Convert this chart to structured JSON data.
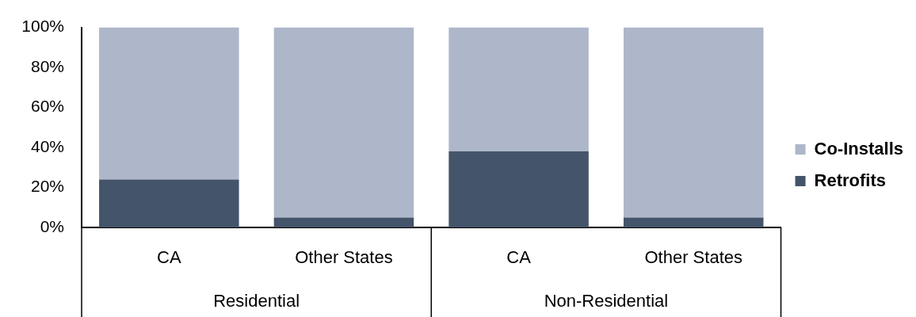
{
  "chart_data": {
    "type": "bar",
    "stacked": true,
    "categories": [
      "CA",
      "Other States",
      "CA",
      "Other States"
    ],
    "series": [
      {
        "name": "Retrofits",
        "color": "#44546a",
        "values": [
          24,
          5,
          38,
          5
        ]
      },
      {
        "name": "Co-Installs",
        "color": "#adb7c9",
        "values": [
          76,
          95,
          62,
          95
        ]
      }
    ],
    "ylim": [
      0,
      100
    ],
    "yticks": [
      {
        "value": 0,
        "label": "0%"
      },
      {
        "value": 20,
        "label": "20%"
      },
      {
        "value": 40,
        "label": "40%"
      },
      {
        "value": 60,
        "label": "60%"
      },
      {
        "value": 80,
        "label": "80%"
      },
      {
        "value": 100,
        "label": "100%"
      }
    ],
    "annotations": [
      "Residential",
      "Non-Residential"
    ],
    "grid": false,
    "legend": "right"
  }
}
